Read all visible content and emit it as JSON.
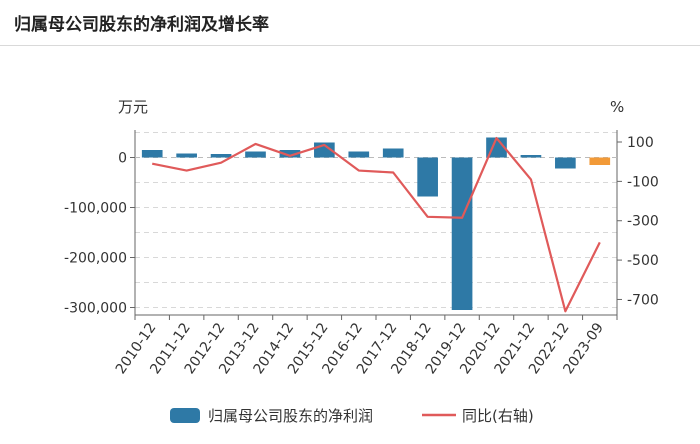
{
  "header": {
    "title": "归属母公司股东的净利润及增长率"
  },
  "chart_data": {
    "type": "bar",
    "categories": [
      "2010-12",
      "2011-12",
      "2012-12",
      "2013-12",
      "2014-12",
      "2015-12",
      "2016-12",
      "2017-12",
      "2018-12",
      "2019-12",
      "2020-12",
      "2021-12",
      "2022-12",
      "2023-09"
    ],
    "left_unit": "万元",
    "right_unit": "%",
    "left_ylim": [
      -315000,
      55000
    ],
    "left_ticks": [
      0,
      -100000,
      -200000,
      -300000
    ],
    "left_tick_labels": [
      "0",
      "-100,000",
      "-200,000",
      "-300,000"
    ],
    "right_ylim": [
      -779,
      161
    ],
    "right_ticks": [
      100,
      -100,
      -300,
      -500,
      -700
    ],
    "right_tick_labels": [
      "100",
      "-100",
      "-300",
      "-500",
      "-700"
    ],
    "grid": true,
    "legend_position": "bottom",
    "series": [
      {
        "name": "归属母公司股东的净利润",
        "type": "bar",
        "axis": "left",
        "color": "#2e79a6",
        "highlight_color": "#f29a38",
        "values": [
          15000,
          8000,
          7000,
          12000,
          15000,
          30000,
          12000,
          18000,
          -78000,
          -305000,
          40000,
          5000,
          -22000,
          -15000
        ]
      },
      {
        "name": "同比(右轴)",
        "type": "line",
        "axis": "right",
        "color": "#e05a5a",
        "values": [
          -10,
          -45,
          -5,
          90,
          30,
          85,
          -45,
          -55,
          -280,
          -285,
          120,
          -90,
          -760,
          -410
        ]
      }
    ]
  }
}
